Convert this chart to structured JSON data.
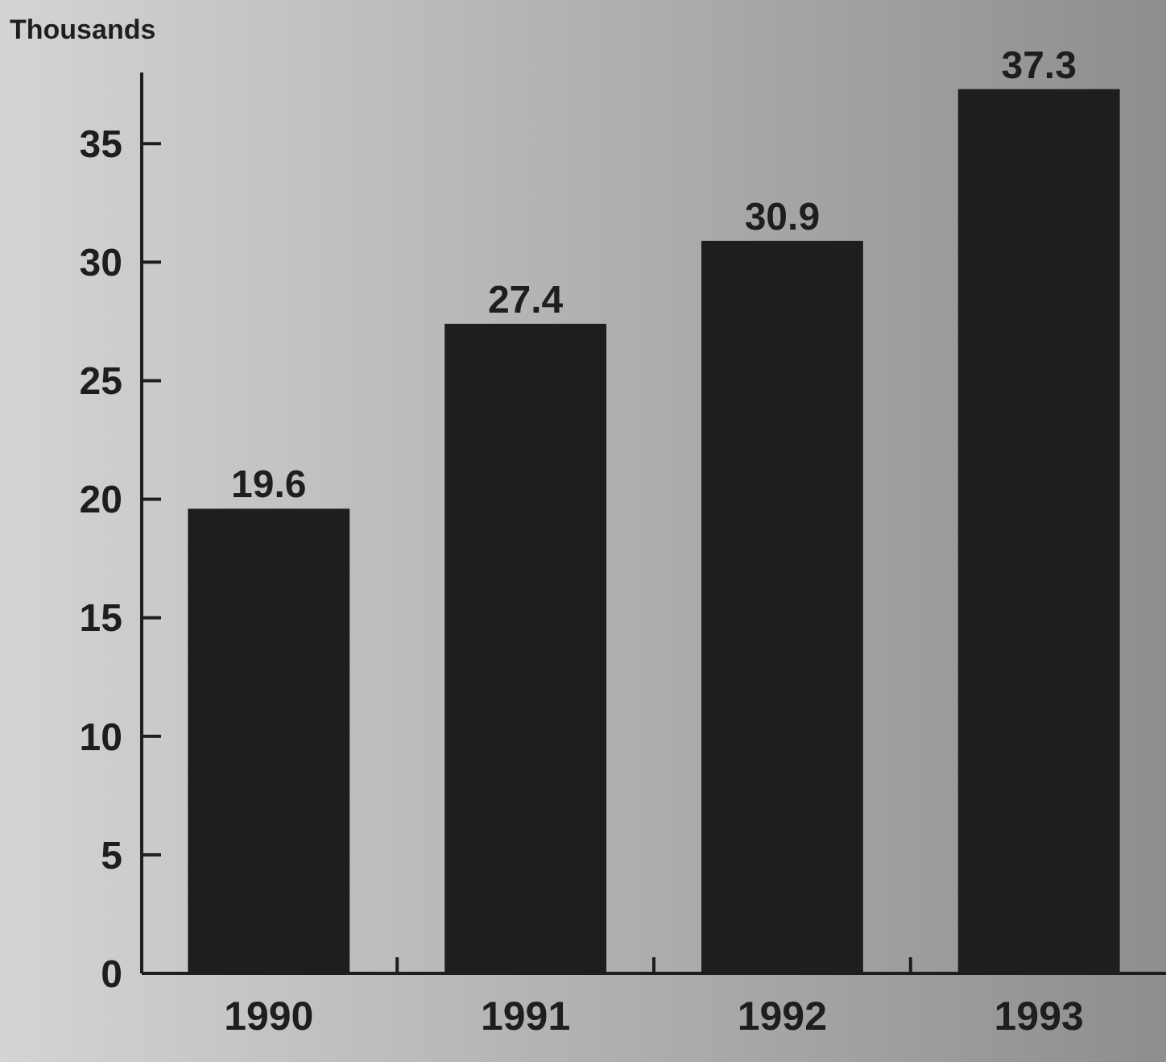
{
  "chart_data": {
    "type": "bar",
    "ylabel": "Thousands",
    "categories": [
      "1990",
      "1991",
      "1992",
      "1993"
    ],
    "values": [
      19.6,
      27.4,
      30.9,
      37.3
    ],
    "color": "#1e1e1e",
    "ylim": [
      0,
      38
    ],
    "yticks": [
      0,
      5,
      10,
      15,
      20,
      25,
      30,
      35
    ],
    "data_labels": true,
    "grid": false
  }
}
